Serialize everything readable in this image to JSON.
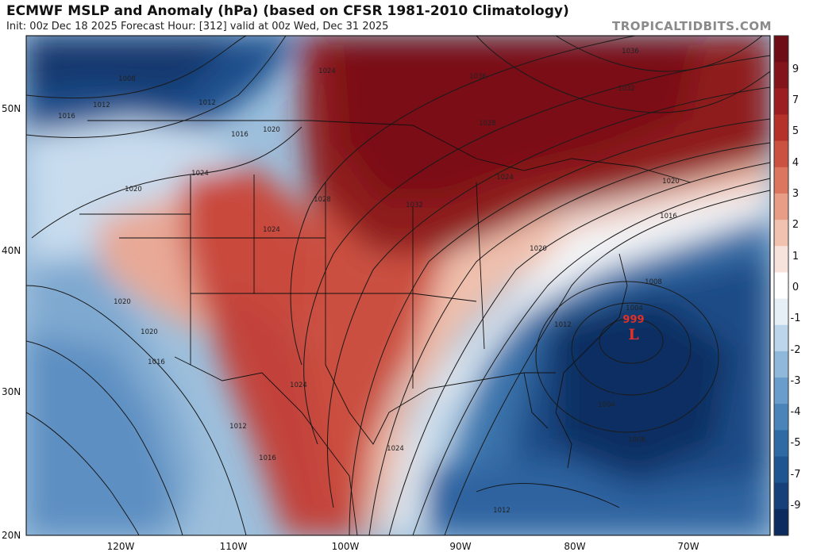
{
  "header": {
    "title": "ECMWF MSLP and Anomaly (hPa) (based on CFSR 1981-2010 Climatology)",
    "subtitle": "Init: 00z Dec 18 2025   Forecast Hour: [312]   valid at 00z Wed, Dec 31 2025",
    "brand": "TROPICALTIDBITS.COM"
  },
  "lat_labels": [
    "50N",
    "40N",
    "30N",
    "20N"
  ],
  "lon_labels": [
    "120W",
    "110W",
    "100W",
    "90W",
    "80W",
    "70W"
  ],
  "colorbar": {
    "ticks": [
      "9",
      "7",
      "5",
      "4",
      "3",
      "2",
      "1",
      "0",
      "-1",
      "-2",
      "-3",
      "-4",
      "-5",
      "-7",
      "-9"
    ],
    "colors": [
      "#0d2b5e",
      "#16407a",
      "#1f5591",
      "#2f6aa5",
      "#4a84b9",
      "#6a9dcb",
      "#8fb8da",
      "#bcd5ea",
      "#e6eef6",
      "#ffffff",
      "#f8e3dc",
      "#f2c2b1",
      "#e89d86",
      "#dc765e",
      "#cb5140",
      "#b5322b",
      "#9d1e22",
      "#84141b",
      "#6e0d15"
    ]
  },
  "isobar_labels": [
    "1036",
    "1032",
    "1028",
    "1028",
    "1024",
    "1024",
    "1024",
    "1024",
    "1024",
    "1024",
    "1020",
    "1020",
    "1020",
    "1020",
    "1020",
    "1020",
    "1016",
    "1016",
    "1016",
    "1016",
    "1016",
    "1012",
    "1012",
    "1012",
    "1012",
    "1008",
    "1008",
    "1008",
    "1004",
    "1004",
    "1012",
    "1036",
    "1032"
  ],
  "low_center": {
    "pressure": "999",
    "symbol": "L",
    "color": "#e0302a"
  }
}
